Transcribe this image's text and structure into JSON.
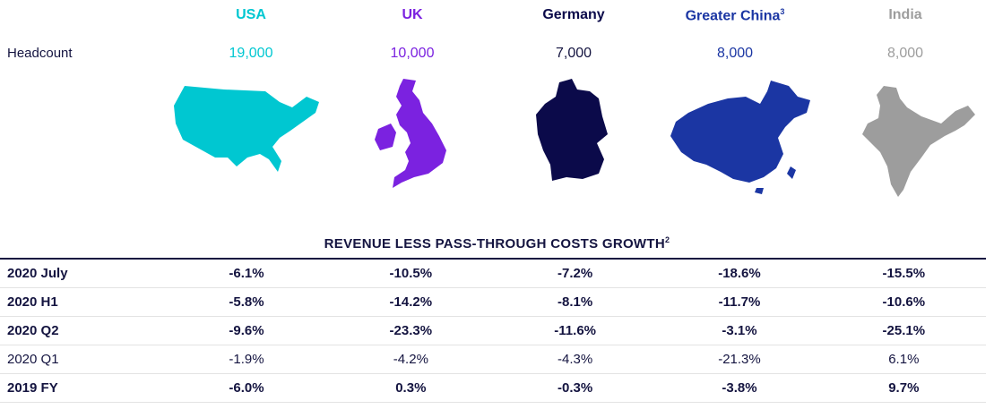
{
  "countries": [
    {
      "name": "USA",
      "sup": "",
      "color": "#00c7d1",
      "headcount": "19,000"
    },
    {
      "name": "UK",
      "sup": "",
      "color": "#7b22e0",
      "headcount": "10,000"
    },
    {
      "name": "Germany",
      "sup": "",
      "color": "#0b0a4a",
      "headcount": "7,000"
    },
    {
      "name": "Greater China",
      "sup": "3",
      "color": "#1b36a3",
      "headcount": "8,000"
    },
    {
      "name": "India",
      "sup": "",
      "color": "#9d9d9d",
      "headcount": "8,000"
    }
  ],
  "headcount_label": "Headcount",
  "table": {
    "title": "REVENUE LESS PASS-THROUGH COSTS GROWTH",
    "title_sup": "2",
    "rows": [
      {
        "label": "2020 July",
        "bold": true,
        "values": [
          "-6.1%",
          "-10.5%",
          "-7.2%",
          "-18.6%",
          "-15.5%"
        ]
      },
      {
        "label": "2020 H1",
        "bold": true,
        "values": [
          "-5.8%",
          "-14.2%",
          "-8.1%",
          "-11.7%",
          "-10.6%"
        ]
      },
      {
        "label": "2020 Q2",
        "bold": true,
        "values": [
          "-9.6%",
          "-23.3%",
          "-11.6%",
          "-3.1%",
          "-25.1%"
        ]
      },
      {
        "label": "2020 Q1",
        "bold": false,
        "values": [
          "-1.9%",
          "-4.2%",
          "-4.3%",
          "-21.3%",
          "6.1%"
        ]
      },
      {
        "label": "2019 FY",
        "bold": true,
        "values": [
          "-6.0%",
          "0.3%",
          "-0.3%",
          "-3.8%",
          "9.7%"
        ]
      }
    ]
  },
  "chart_data": {
    "type": "table",
    "categories": [
      "USA",
      "UK",
      "Germany",
      "Greater China",
      "India"
    ],
    "headcount": [
      19000,
      10000,
      7000,
      8000,
      8000
    ],
    "series": [
      {
        "name": "2020 July",
        "values": [
          -6.1,
          -10.5,
          -7.2,
          -18.6,
          -15.5
        ]
      },
      {
        "name": "2020 H1",
        "values": [
          -5.8,
          -14.2,
          -8.1,
          -11.7,
          -10.6
        ]
      },
      {
        "name": "2020 Q2",
        "values": [
          -9.6,
          -23.3,
          -11.6,
          -3.1,
          -25.1
        ]
      },
      {
        "name": "2020 Q1",
        "values": [
          -1.9,
          -4.2,
          -4.3,
          -21.3,
          6.1
        ]
      },
      {
        "name": "2019 FY",
        "values": [
          -6.0,
          0.3,
          -0.3,
          -3.8,
          9.7
        ]
      }
    ],
    "title": "REVENUE LESS PASS-THROUGH COSTS GROWTH"
  }
}
